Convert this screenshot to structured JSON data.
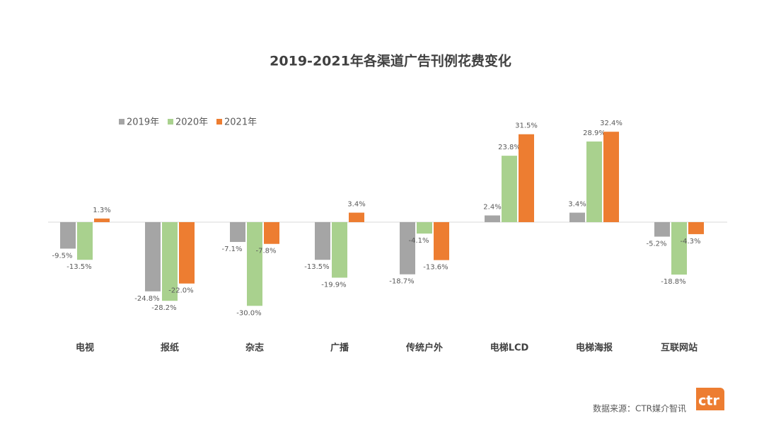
{
  "chart_data": {
    "type": "bar",
    "title": "2019-2021年各渠道广告刊例花费变化",
    "categories": [
      "电视",
      "报纸",
      "杂志",
      "广播",
      "传统户外",
      "电梯LCD",
      "电梯海报",
      "互联网站"
    ],
    "series": [
      {
        "name": "2019年",
        "color": "#a5a5a5",
        "values": [
          -9.5,
          -24.8,
          -7.1,
          -13.5,
          -18.7,
          2.4,
          3.4,
          -5.2
        ],
        "value_labels": [
          "-9.5%",
          "-24.8%",
          "-7.1%",
          "-13.5%",
          "-18.7%",
          "2.4%",
          "3.4%",
          "-5.2%"
        ]
      },
      {
        "name": "2020年",
        "color": "#a9d18e",
        "values": [
          -13.5,
          -28.2,
          -30.0,
          -19.9,
          -4.1,
          23.8,
          28.9,
          -18.8
        ],
        "value_labels": [
          "-13.5%",
          "-28.2%",
          "-30.0%",
          "-19.9%",
          "-4.1%",
          "23.8%",
          "28.9%",
          "-18.8%"
        ]
      },
      {
        "name": "2021年",
        "color": "#ed7d31",
        "values": [
          1.3,
          -22.0,
          -7.8,
          3.4,
          -13.6,
          31.5,
          32.4,
          -4.3
        ],
        "value_labels": [
          "1.3%",
          "-22.0%",
          "-7.8%",
          "3.4%",
          "-13.6%",
          "31.5%",
          "32.4%",
          "-4.3%"
        ]
      }
    ],
    "ylim": [
      -35,
      36
    ],
    "legend": "top-left"
  },
  "source": "数据来源：CTR媒介智讯",
  "logo": "ctr"
}
